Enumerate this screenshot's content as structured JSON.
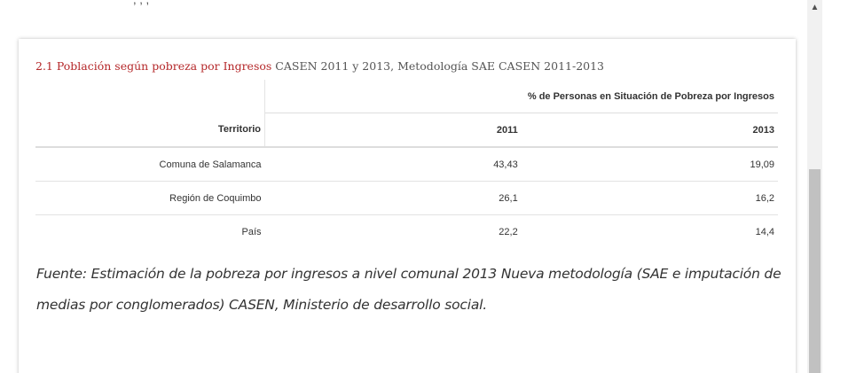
{
  "top_fragment": ", , ,",
  "section": {
    "number": "2.1",
    "highlight": "Población según pobreza por Ingresos",
    "rest": "CASEN 2011 y 2013, Metodología SAE CASEN 2011-2013"
  },
  "table": {
    "group_header": "% de Personas en Situación de Pobreza por Ingresos",
    "columns": [
      "Territorio",
      "2011",
      "2013"
    ],
    "rows": [
      [
        "Comuna de Salamanca",
        "43,43",
        "19,09"
      ],
      [
        "Región de Coquimbo",
        "26,1",
        "16,2"
      ],
      [
        "País",
        "22,2",
        "14,4"
      ]
    ]
  },
  "source_note": "Fuente: Estimación de la pobreza por ingresos a nivel comunal 2013 Nueva metodología (SAE e imputación de medias por conglomerados) CASEN, Ministerio de desarrollo social.",
  "scrollbar": {
    "up_arrow": "▲"
  },
  "colors": {
    "accent": "#b5282a",
    "text": "#333333",
    "scroll_thumb": "#c1c1c1"
  }
}
